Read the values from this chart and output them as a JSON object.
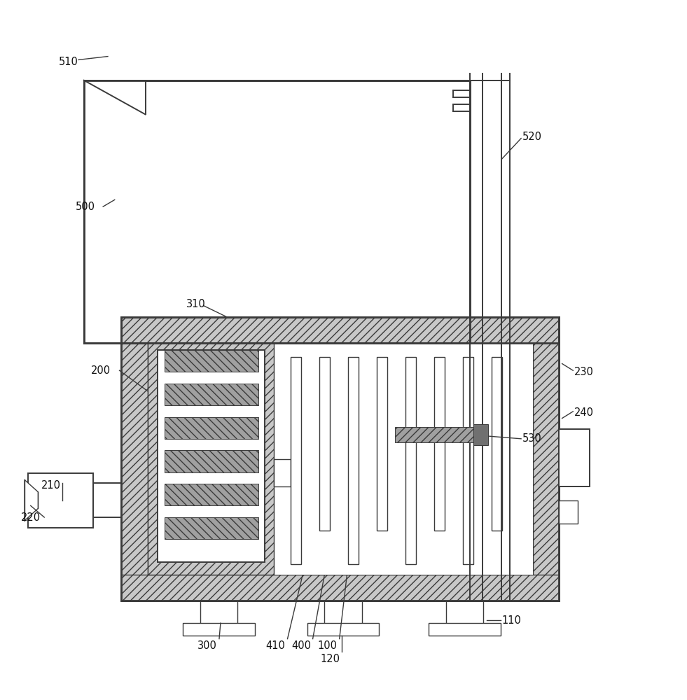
{
  "bg": "#ffffff",
  "lc": "#3a3a3a",
  "hatch_fc": "#c8c8c8",
  "heater_fc": "#a0a0a0",
  "dark_fc": "#707070",
  "lw_outer": 2.0,
  "lw_inner": 1.4,
  "lw_thin": 1.0,
  "lw_leader": 1.0
}
